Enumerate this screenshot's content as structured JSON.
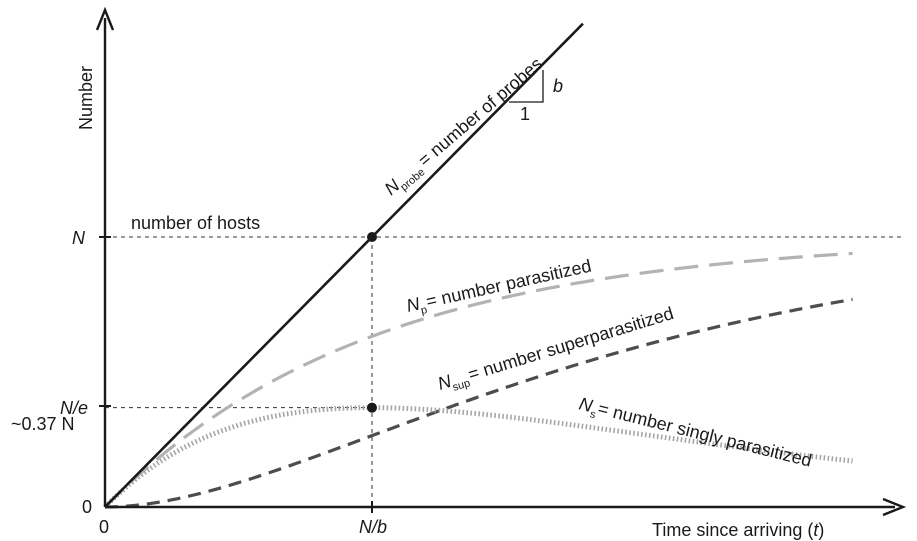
{
  "chart_data": {
    "type": "line",
    "title": "",
    "xlabel": {
      "text": "Time since arriving (",
      "var": "t",
      "close": ")"
    },
    "ylabel": "Number",
    "x_ticks": {
      "origin": "0",
      "mid": "N/b"
    },
    "y_ticks": {
      "origin": "0",
      "N": "N",
      "Ne": "N/e",
      "Ne_approx": "~0.37 N"
    },
    "annotations": {
      "hosts": "number of hosts",
      "slope_rise": "b",
      "slope_run": "1"
    },
    "series": [
      {
        "id": "probe",
        "sym": "N",
        "sub": "probe",
        "label": "= number of probes",
        "color": "#1a1a1a",
        "style": "solid"
      },
      {
        "id": "parasitized",
        "sym": "N",
        "sub": "p",
        "label": "= number parasitized",
        "color": "#b3b3b3",
        "style": "longdash"
      },
      {
        "id": "superparasitized",
        "sym": "N",
        "sub": "sup",
        "label": "= number superparasitized",
        "color": "#4d4d4d",
        "style": "dash"
      },
      {
        "id": "singly",
        "sym": "N",
        "sub": "s",
        "label": "= number singly parasitized",
        "color": "#a6a6a6",
        "style": "dot"
      }
    ],
    "model": {
      "N": 1,
      "b": 1,
      "x_max": 2.8,
      "y_max": 1.62,
      "curves": {
        "probe": "b*t",
        "parasitized": "N*(1-exp(-b*t/N))",
        "superparasitized": "N*(1-exp(-b*t/N)-(b*t/N)*exp(-b*t/N))",
        "singly": "b*t*exp(-b*t/N)"
      }
    }
  }
}
